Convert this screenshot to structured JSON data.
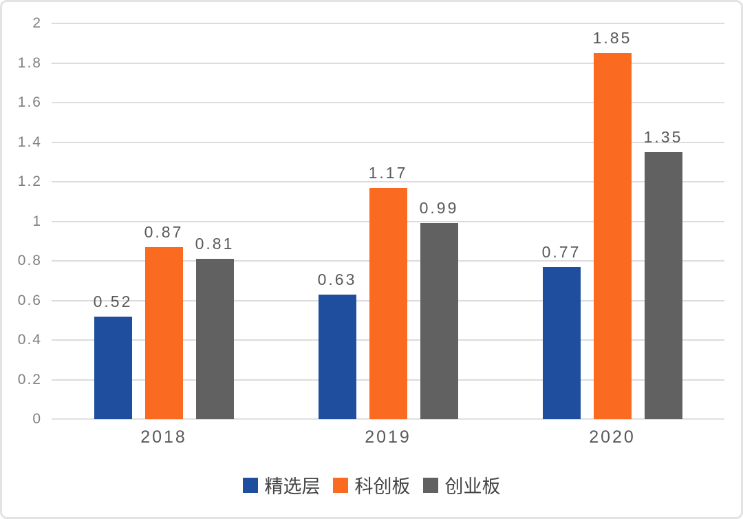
{
  "chart_data": {
    "type": "bar",
    "title": "",
    "xlabel": "",
    "ylabel": "",
    "categories": [
      "2018",
      "2019",
      "2020"
    ],
    "series": [
      {
        "name": "精选层",
        "color": "#1F4E9F",
        "values": [
          0.52,
          0.63,
          0.77
        ],
        "labels": [
          "0.52",
          "0.63",
          "0.77"
        ]
      },
      {
        "name": "科创板",
        "color": "#FA6A20",
        "values": [
          0.87,
          1.17,
          1.85
        ],
        "labels": [
          "0.87",
          "1.17",
          "1.85"
        ]
      },
      {
        "name": "创业板",
        "color": "#616161",
        "values": [
          0.81,
          0.99,
          1.35
        ],
        "labels": [
          "0.81",
          "0.99",
          "1.35"
        ]
      }
    ],
    "ylim": [
      0,
      2
    ],
    "ytick_step": 0.2,
    "yticks": [
      "2",
      "1.8",
      "1.6",
      "1.4",
      "1.2",
      "1",
      "0.8",
      "0.6",
      "0.4",
      "0.2",
      "0"
    ],
    "grid": true,
    "legend_position": "bottom"
  },
  "colors": {
    "grid": "#dcdcdc",
    "axis_line": "#e7e7e7",
    "tick_text": "#808080",
    "label_text": "#595959",
    "legend_text": "#454545",
    "card_border": "#e3e3e3",
    "background": "#ffffff"
  }
}
